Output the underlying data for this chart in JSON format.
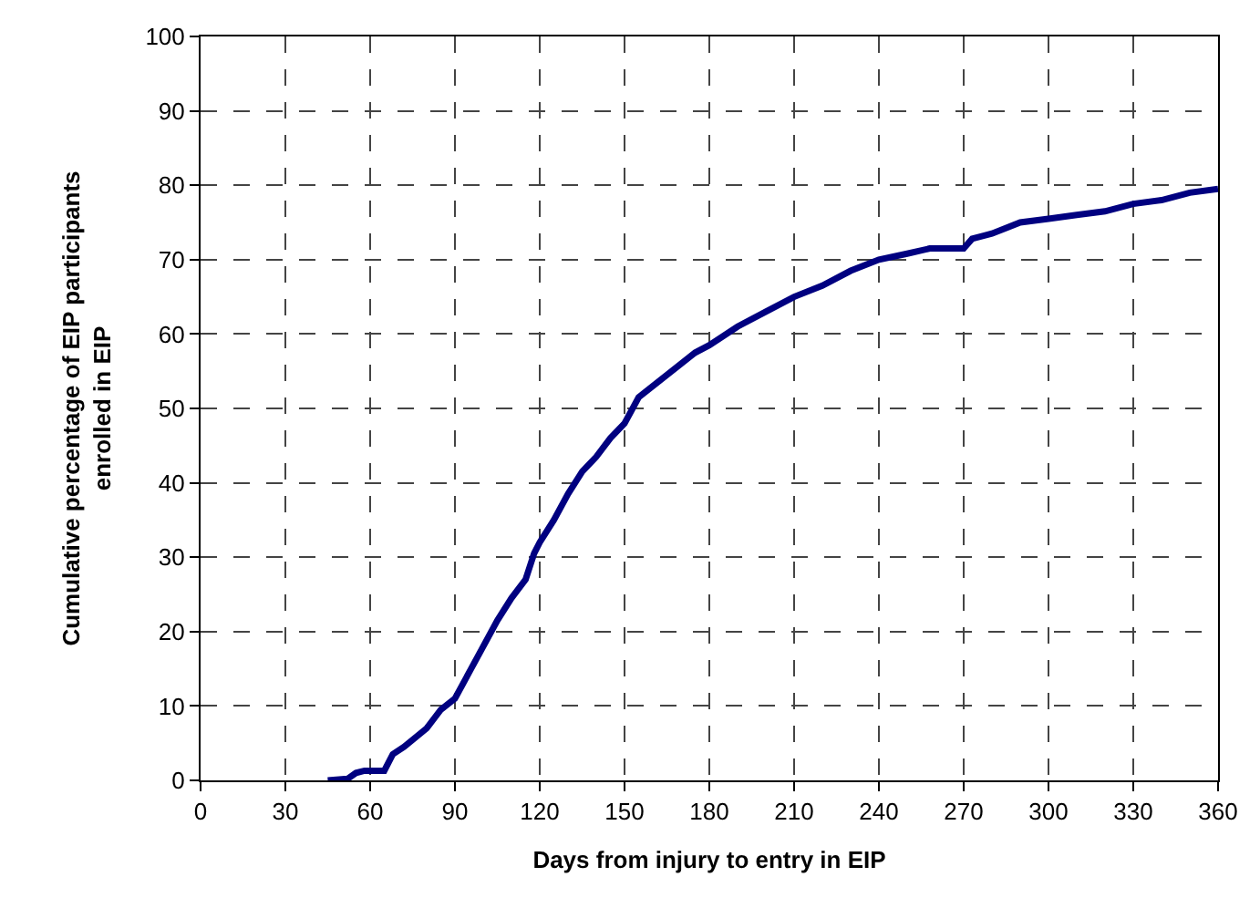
{
  "chart_data": {
    "type": "line",
    "xlabel": "Days from injury to entry in EIP",
    "ylabel": "Cumulative percentage of EIP participants enrolled in EIP",
    "x": [
      45,
      52,
      55,
      58,
      65,
      68,
      72,
      80,
      85,
      90,
      95,
      100,
      105,
      110,
      115,
      118,
      120,
      125,
      130,
      135,
      140,
      145,
      150,
      155,
      160,
      165,
      170,
      175,
      180,
      190,
      200,
      210,
      220,
      230,
      240,
      250,
      258,
      270,
      273,
      280,
      290,
      300,
      310,
      320,
      330,
      340,
      350,
      360
    ],
    "series": [
      {
        "color": "#000080",
        "values": [
          0,
          0.2,
          1,
          1.3,
          1.3,
          3.5,
          4.5,
          7,
          9.5,
          11,
          14.5,
          18,
          21.5,
          24.5,
          27,
          30.5,
          32,
          35,
          38.5,
          41.5,
          43.5,
          46,
          48,
          51.5,
          53,
          54.5,
          56,
          57.5,
          58.5,
          61,
          63,
          65,
          66.5,
          68.5,
          70,
          70.8,
          71.5,
          71.5,
          72.8,
          73.5,
          75,
          75.5,
          76,
          76.5,
          77.5,
          78,
          79,
          79.5
        ]
      }
    ],
    "xlim": [
      0,
      360
    ],
    "xticks": [
      0,
      30,
      60,
      90,
      120,
      150,
      180,
      210,
      240,
      270,
      300,
      330,
      360
    ],
    "ylim": [
      0,
      100
    ],
    "yticks": [
      0,
      10,
      20,
      30,
      40,
      50,
      60,
      70,
      80,
      90,
      100
    ],
    "grid": true,
    "marker": "none",
    "line_style": "solid"
  }
}
